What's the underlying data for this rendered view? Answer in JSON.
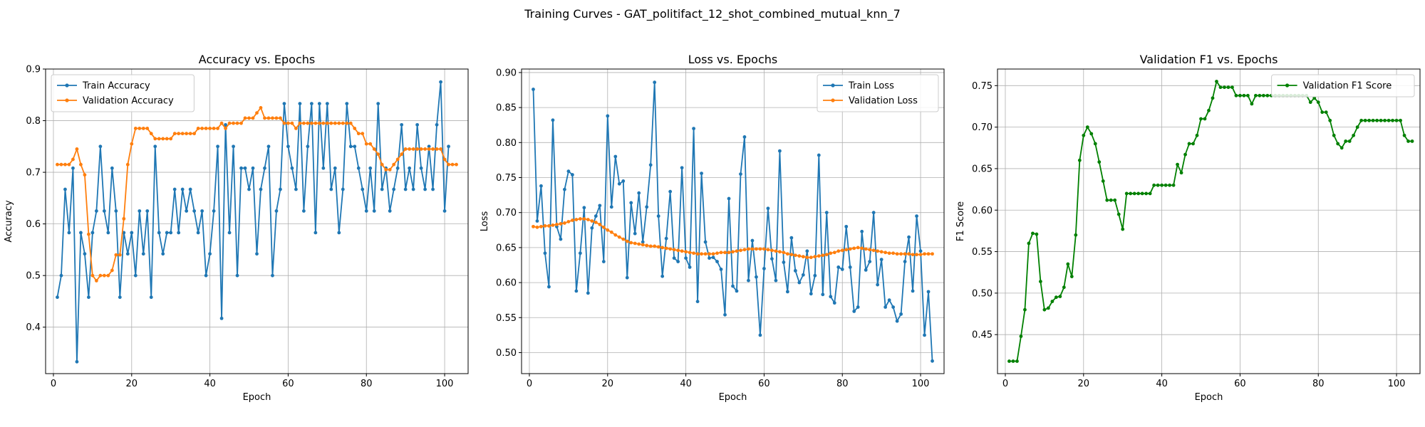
{
  "suptitle": "Training Curves - GAT_politifact_12_shot_combined_mutual_knn_7",
  "chart_data": [
    {
      "type": "line",
      "title": "Accuracy vs. Epochs",
      "xlabel": "Epoch",
      "ylabel": "Accuracy",
      "xlim": [
        -2,
        106
      ],
      "ylim": [
        0.31,
        0.9
      ],
      "xticks": [
        0,
        20,
        40,
        60,
        80,
        100
      ],
      "yticks": [
        0.4,
        0.5,
        0.6,
        0.7,
        0.8,
        0.9
      ],
      "ytick_decimals": 1,
      "grid": true,
      "legend": "top-left",
      "series": [
        {
          "name": "Train Accuracy",
          "color": "#1f77b4",
          "x_start": 1,
          "values": [
            0.458,
            0.5,
            0.667,
            0.583,
            0.708,
            0.333,
            0.583,
            0.542,
            0.458,
            0.583,
            0.625,
            0.75,
            0.625,
            0.583,
            0.708,
            0.625,
            0.458,
            0.583,
            0.542,
            0.583,
            0.5,
            0.625,
            0.542,
            0.625,
            0.458,
            0.75,
            0.583,
            0.542,
            0.583,
            0.583,
            0.667,
            0.583,
            0.667,
            0.625,
            0.667,
            0.625,
            0.583,
            0.625,
            0.5,
            0.542,
            0.625,
            0.75,
            0.417,
            0.792,
            0.583,
            0.75,
            0.5,
            0.708,
            0.708,
            0.667,
            0.708,
            0.542,
            0.667,
            0.708,
            0.75,
            0.5,
            0.625,
            0.667,
            0.833,
            0.75,
            0.708,
            0.667,
            0.833,
            0.625,
            0.75,
            0.833,
            0.583,
            0.833,
            0.708,
            0.833,
            0.667,
            0.708,
            0.583,
            0.667,
            0.833,
            0.75,
            0.75,
            0.708,
            0.667,
            0.625,
            0.708,
            0.625,
            0.833,
            0.667,
            0.708,
            0.625,
            0.667,
            0.708,
            0.792,
            0.667,
            0.708,
            0.667,
            0.792,
            0.708,
            0.667,
            0.75,
            0.667,
            0.792,
            0.875,
            0.625,
            0.75
          ]
        },
        {
          "name": "Validation Accuracy",
          "color": "#ff7f0e",
          "x_start": 1,
          "values": [
            0.715,
            0.715,
            0.715,
            0.715,
            0.725,
            0.745,
            0.715,
            0.695,
            0.58,
            0.5,
            0.49,
            0.5,
            0.5,
            0.5,
            0.51,
            0.54,
            0.54,
            0.61,
            0.715,
            0.755,
            0.785,
            0.785,
            0.785,
            0.785,
            0.775,
            0.765,
            0.765,
            0.765,
            0.765,
            0.765,
            0.775,
            0.775,
            0.775,
            0.775,
            0.775,
            0.775,
            0.785,
            0.785,
            0.785,
            0.785,
            0.785,
            0.785,
            0.795,
            0.785,
            0.795,
            0.795,
            0.795,
            0.795,
            0.805,
            0.805,
            0.805,
            0.815,
            0.825,
            0.805,
            0.805,
            0.805,
            0.805,
            0.805,
            0.795,
            0.795,
            0.795,
            0.785,
            0.795,
            0.795,
            0.795,
            0.795,
            0.795,
            0.795,
            0.795,
            0.795,
            0.795,
            0.795,
            0.795,
            0.795,
            0.795,
            0.795,
            0.785,
            0.775,
            0.775,
            0.755,
            0.755,
            0.745,
            0.735,
            0.715,
            0.705,
            0.705,
            0.715,
            0.725,
            0.735,
            0.745,
            0.745,
            0.745,
            0.745,
            0.745,
            0.745,
            0.745,
            0.745,
            0.745,
            0.745,
            0.725,
            0.715,
            0.715,
            0.715
          ]
        }
      ]
    },
    {
      "type": "line",
      "title": "Loss vs. Epochs",
      "xlabel": "Epoch",
      "ylabel": "Loss",
      "xlim": [
        -2,
        106
      ],
      "ylim": [
        0.47,
        0.905
      ],
      "xticks": [
        0,
        20,
        40,
        60,
        80,
        100
      ],
      "yticks": [
        0.5,
        0.55,
        0.6,
        0.65,
        0.7,
        0.75,
        0.8,
        0.85,
        0.9
      ],
      "ytick_decimals": 2,
      "grid": true,
      "legend": "top-right",
      "series": [
        {
          "name": "Train Loss",
          "color": "#1f77b4",
          "x_start": 1,
          "values": [
            0.876,
            0.688,
            0.738,
            0.642,
            0.594,
            0.832,
            0.68,
            0.662,
            0.733,
            0.759,
            0.754,
            0.588,
            0.642,
            0.707,
            0.585,
            0.678,
            0.695,
            0.71,
            0.63,
            0.838,
            0.708,
            0.78,
            0.741,
            0.745,
            0.607,
            0.714,
            0.67,
            0.728,
            0.658,
            0.708,
            0.768,
            0.886,
            0.695,
            0.609,
            0.663,
            0.73,
            0.635,
            0.63,
            0.764,
            0.635,
            0.622,
            0.82,
            0.573,
            0.756,
            0.658,
            0.635,
            0.636,
            0.63,
            0.619,
            0.554,
            0.72,
            0.595,
            0.588,
            0.755,
            0.808,
            0.603,
            0.66,
            0.608,
            0.525,
            0.62,
            0.706,
            0.634,
            0.603,
            0.788,
            0.629,
            0.587,
            0.664,
            0.617,
            0.6,
            0.611,
            0.645,
            0.584,
            0.61,
            0.782,
            0.583,
            0.7,
            0.58,
            0.571,
            0.622,
            0.619,
            0.68,
            0.622,
            0.559,
            0.565,
            0.673,
            0.618,
            0.63,
            0.7,
            0.597,
            0.633,
            0.565,
            0.575,
            0.565,
            0.545,
            0.555,
            0.63,
            0.665,
            0.588,
            0.695,
            0.645,
            0.525,
            0.587,
            0.488
          ]
        },
        {
          "name": "Validation Loss",
          "color": "#ff7f0e",
          "x_start": 1,
          "values": [
            0.68,
            0.679,
            0.68,
            0.681,
            0.681,
            0.682,
            0.683,
            0.684,
            0.685,
            0.687,
            0.689,
            0.69,
            0.691,
            0.691,
            0.69,
            0.688,
            0.686,
            0.683,
            0.679,
            0.675,
            0.672,
            0.668,
            0.665,
            0.662,
            0.659,
            0.657,
            0.656,
            0.655,
            0.654,
            0.653,
            0.652,
            0.652,
            0.651,
            0.65,
            0.649,
            0.648,
            0.647,
            0.646,
            0.645,
            0.644,
            0.643,
            0.642,
            0.641,
            0.641,
            0.641,
            0.641,
            0.641,
            0.642,
            0.643,
            0.643,
            0.643,
            0.644,
            0.645,
            0.646,
            0.647,
            0.648,
            0.648,
            0.648,
            0.648,
            0.648,
            0.647,
            0.646,
            0.645,
            0.644,
            0.643,
            0.641,
            0.64,
            0.639,
            0.638,
            0.637,
            0.636,
            0.636,
            0.637,
            0.638,
            0.639,
            0.64,
            0.642,
            0.643,
            0.645,
            0.646,
            0.647,
            0.648,
            0.649,
            0.65,
            0.649,
            0.648,
            0.647,
            0.646,
            0.645,
            0.644,
            0.643,
            0.642,
            0.642,
            0.641,
            0.641,
            0.641,
            0.641,
            0.64,
            0.64,
            0.64,
            0.641,
            0.641,
            0.641
          ]
        }
      ]
    },
    {
      "type": "line",
      "title": "Validation F1 vs. Epochs",
      "xlabel": "Epoch",
      "ylabel": "F1 Score",
      "xlim": [
        -2,
        106
      ],
      "ylim": [
        0.403,
        0.77
      ],
      "xticks": [
        0,
        20,
        40,
        60,
        80,
        100
      ],
      "yticks": [
        0.45,
        0.5,
        0.55,
        0.6,
        0.65,
        0.7,
        0.75
      ],
      "ytick_decimals": 2,
      "grid": true,
      "legend": "top-right",
      "series": [
        {
          "name": "Validation F1 Score",
          "color": "#008000",
          "x_start": 1,
          "values": [
            0.418,
            0.418,
            0.418,
            0.448,
            0.48,
            0.56,
            0.572,
            0.571,
            0.514,
            0.48,
            0.482,
            0.49,
            0.495,
            0.496,
            0.507,
            0.535,
            0.52,
            0.57,
            0.66,
            0.69,
            0.7,
            0.692,
            0.68,
            0.658,
            0.635,
            0.612,
            0.612,
            0.612,
            0.595,
            0.577,
            0.62,
            0.62,
            0.62,
            0.62,
            0.62,
            0.62,
            0.62,
            0.63,
            0.63,
            0.63,
            0.63,
            0.63,
            0.63,
            0.655,
            0.645,
            0.667,
            0.68,
            0.68,
            0.69,
            0.71,
            0.71,
            0.72,
            0.735,
            0.755,
            0.748,
            0.748,
            0.748,
            0.748,
            0.738,
            0.738,
            0.738,
            0.738,
            0.728,
            0.738,
            0.738,
            0.738,
            0.738,
            0.738,
            0.738,
            0.738,
            0.738,
            0.738,
            0.738,
            0.738,
            0.738,
            0.738,
            0.738,
            0.73,
            0.735,
            0.73,
            0.718,
            0.718,
            0.708,
            0.69,
            0.68,
            0.675,
            0.683,
            0.683,
            0.69,
            0.7,
            0.708,
            0.708,
            0.708,
            0.708,
            0.708,
            0.708,
            0.708,
            0.708,
            0.708,
            0.708,
            0.708,
            0.69,
            0.683,
            0.683
          ]
        }
      ]
    }
  ]
}
